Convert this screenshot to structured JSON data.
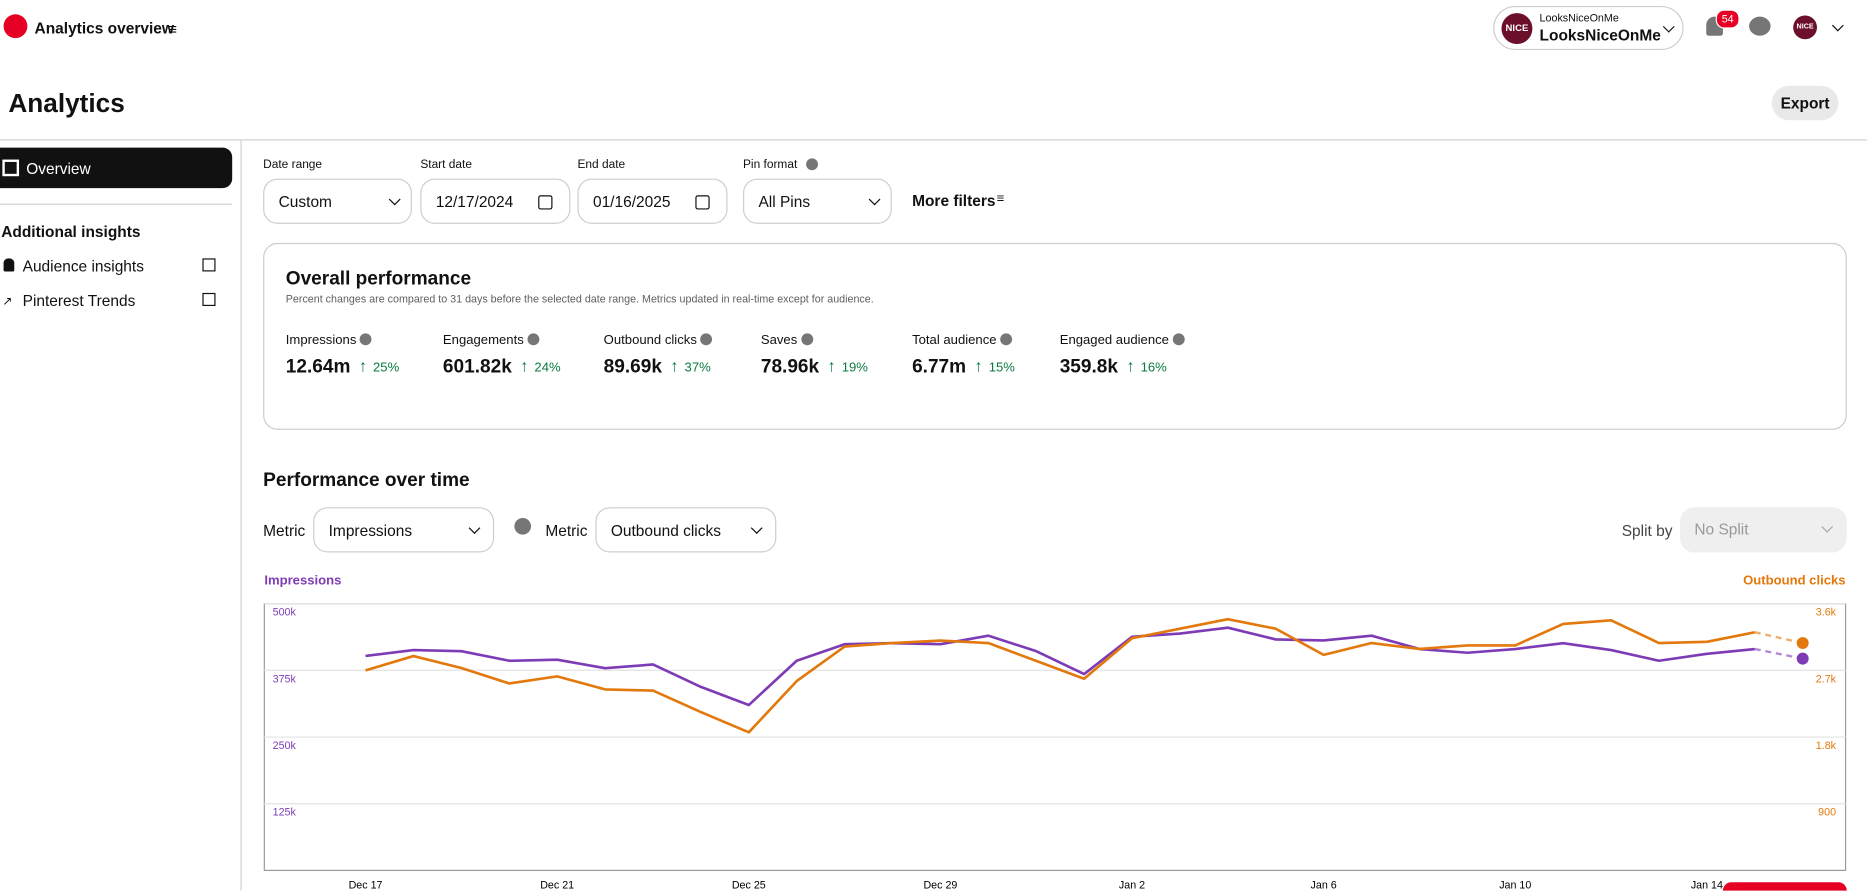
{
  "header": {
    "title": "Analytics overview",
    "account_small": "LooksNiceOnMe",
    "account_name": "LooksNiceOnMe",
    "avatar": "NICE",
    "avatar2": "NICE",
    "badge": 54
  },
  "page": {
    "title": "Analytics",
    "export": "Export"
  },
  "sidebar": {
    "overview": "Overview",
    "section": "Additional insights",
    "links": [
      "Audience insights",
      "Pinterest Trends"
    ]
  },
  "filters": [
    {
      "label": "Date range",
      "value": "Custom"
    },
    {
      "label": "Start date",
      "value": "12/17/2024"
    },
    {
      "label": "End date",
      "value": "01/16/2025"
    },
    {
      "label": "Pin format",
      "value": "All Pins"
    }
  ],
  "more_filters": "More filters",
  "overall": {
    "title": "Overall performance",
    "note": "Percent changes are compared to 31 days before the selected date range. Metrics updated in real-time except for audience.",
    "metrics": [
      {
        "name": "Impressions",
        "value": "12.64m",
        "change": "25%"
      },
      {
        "name": "Engagements",
        "value": "601.82k",
        "change": "24%"
      },
      {
        "name": "Outbound clicks",
        "value": "89.69k",
        "change": "37%"
      },
      {
        "name": "Saves",
        "value": "78.96k",
        "change": "19%"
      },
      {
        "name": "Total audience",
        "value": "6.77m",
        "change": "15%"
      },
      {
        "name": "Engaged audience",
        "value": "359.8k",
        "change": "16%"
      }
    ]
  },
  "performance": {
    "title": "Performance over time",
    "metric_label": "Metric",
    "metric1": "Impressions",
    "metric2": "Outbound clicks",
    "split_label": "Split by",
    "split": "No Split"
  },
  "chart_data": {
    "type": "line",
    "x": [
      "Dec 17",
      null,
      null,
      null,
      "Dec 21",
      null,
      null,
      null,
      "Dec 25",
      null,
      null,
      null,
      "Dec 29",
      null,
      null,
      null,
      "Jan 2",
      null,
      null,
      null,
      "Jan 6",
      null,
      null,
      null,
      "Jan 10",
      null,
      null,
      null,
      "Jan 14",
      null,
      null
    ],
    "series": [
      {
        "name": "Impressions",
        "color": "#7d3cb5",
        "axis": "y",
        "values": [
          402000,
          413000,
          411000,
          393000,
          395000,
          379000,
          386000,
          344000,
          310000,
          393000,
          424000,
          426000,
          424000,
          440000,
          411000,
          368000,
          438000,
          444000,
          455000,
          433000,
          431000,
          440000,
          415000,
          408000,
          415000,
          426000,
          413000,
          393000,
          406000,
          415000,
          397000
        ]
      },
      {
        "name": "Outbound clicks",
        "color": "#e3780c",
        "axis": "y2",
        "values": [
          2700,
          2893,
          2732,
          2523,
          2619,
          2443,
          2427,
          2137,
          1864,
          2555,
          3021,
          3069,
          3102,
          3069,
          2828,
          2587,
          3134,
          3262,
          3391,
          3262,
          2909,
          3069,
          2989,
          3037,
          3037,
          3326,
          3375,
          3069,
          3085,
          3214,
          3069
        ]
      }
    ],
    "ylim": [
      0,
      500000
    ],
    "yticks": [
      {
        "value": 125000,
        "label": "125k"
      },
      {
        "value": 250000,
        "label": "250k"
      },
      {
        "value": 375000,
        "label": "375k"
      },
      {
        "value": 500000,
        "label": "500k"
      }
    ],
    "y2lim": [
      0,
      3600
    ],
    "y2ticks": [
      900,
      {
        "value": 1800,
        "label": "1.8k"
      },
      {
        "value": 2700,
        "label": "2.7k"
      },
      {
        "value": 3600,
        "label": "3.6k"
      }
    ],
    "grid": true
  }
}
